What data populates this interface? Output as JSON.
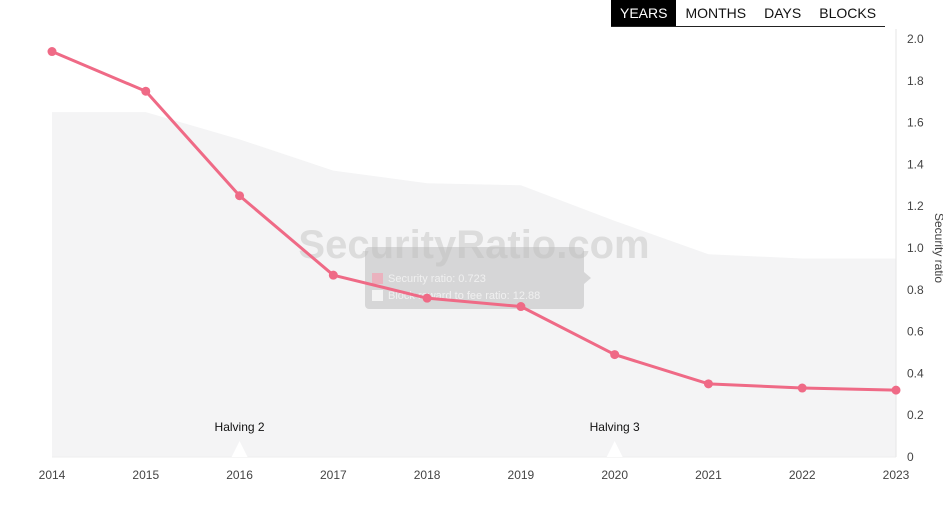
{
  "tabs": [
    {
      "label": "YEARS",
      "active": true
    },
    {
      "label": "MONTHS",
      "active": false
    },
    {
      "label": "DAYS",
      "active": false
    },
    {
      "label": "BLOCKS",
      "active": false
    }
  ],
  "watermark": "SecurityRatio.com",
  "tooltip": {
    "row1": "Security ratio: 0.723",
    "row2": "Block reward to fee ratio: 12.88"
  },
  "colors": {
    "line": "#ef6a86",
    "area": "#f4f4f5",
    "tab_active_bg": "#000000"
  },
  "chart_data": {
    "type": "line",
    "title": "",
    "xlabel": "",
    "ylabel": "Security ratio",
    "categories": [
      "2014",
      "2015",
      "2016",
      "2017",
      "2018",
      "2019",
      "2020",
      "2021",
      "2022",
      "2023"
    ],
    "yticks": [
      "0",
      "0.2",
      "0.4",
      "0.6",
      "0.8",
      "1.0",
      "1.2",
      "1.4",
      "1.6",
      "1.8",
      "2.0"
    ],
    "ylim": [
      0,
      2.0
    ],
    "y_axis_side": "right",
    "grid": false,
    "series": [
      {
        "kind": "line",
        "values": [
          1.94,
          1.75,
          1.25,
          0.87,
          0.76,
          0.72,
          0.49,
          0.35,
          0.33,
          0.32
        ]
      },
      {
        "kind": "area",
        "values": [
          1.65,
          1.65,
          1.52,
          1.37,
          1.31,
          1.3,
          1.13,
          0.97,
          0.95,
          0.95
        ]
      }
    ],
    "annotations": [
      {
        "label": "Halving 2",
        "x": 2016
      },
      {
        "label": "Halving 3",
        "x": 2020
      }
    ]
  }
}
